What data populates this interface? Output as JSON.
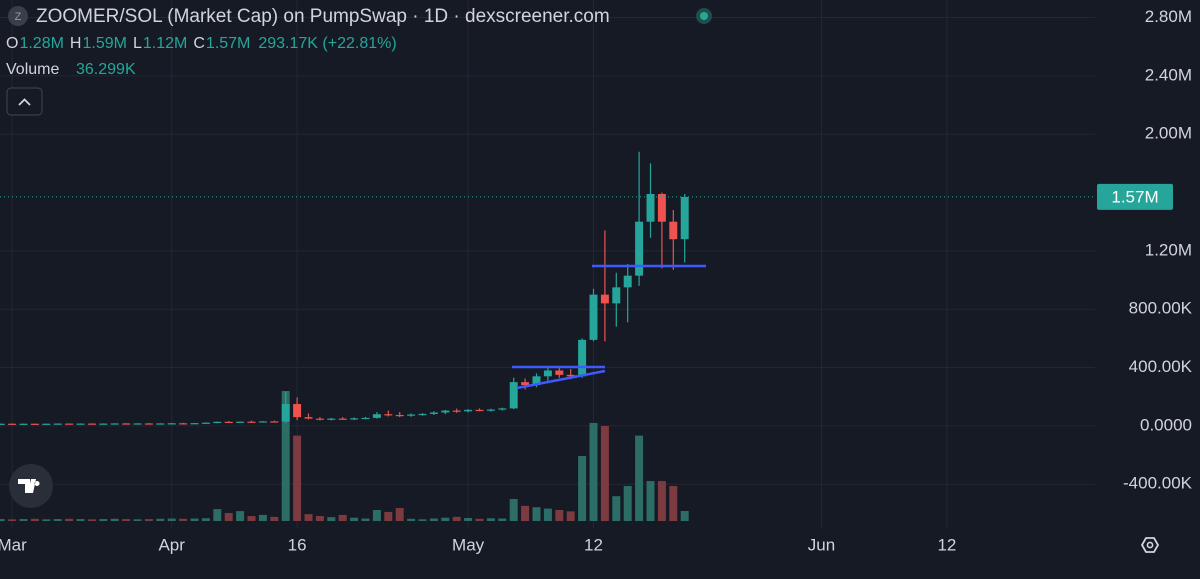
{
  "chart_data": {
    "type": "candlestick",
    "title": "ZOOMER/SOL (Market Cap) on PumpSwap · 1D · dexscreener.com",
    "source_icon": "Z",
    "ohlc_legend": [
      {
        "key": "O",
        "value": "1.28M"
      },
      {
        "key": "H",
        "value": "1.59M"
      },
      {
        "key": "L",
        "value": "1.12M"
      },
      {
        "key": "C",
        "value": "1.57M"
      }
    ],
    "change": "293.17K (+22.81%)",
    "volume_label": "Volume",
    "volume_value": "36.299K",
    "last_price_label": "1.57M",
    "up_color": "#26a69a",
    "down_color": "#ef5350",
    "up_volume_color": "#2c6e66",
    "down_volume_color": "#7d3a40",
    "grid": true,
    "ylim": [
      -700000,
      2920000
    ],
    "yticks": [
      {
        "value": -400000,
        "label": "-400.00K"
      },
      {
        "value": 0,
        "label": "0.0000"
      },
      {
        "value": 400000,
        "label": "400.00K"
      },
      {
        "value": 800000,
        "label": "800.00K"
      },
      {
        "value": 1200000,
        "label": "1.20M"
      },
      {
        "value": 2000000,
        "label": "2.00M"
      },
      {
        "value": 2400000,
        "label": "2.40M"
      },
      {
        "value": 2800000,
        "label": "2.80M"
      }
    ],
    "categories": [
      null,
      "Mar",
      null,
      null,
      null,
      null,
      null,
      null,
      null,
      null,
      null,
      null,
      null,
      null,
      null,
      "Apr",
      null,
      null,
      null,
      null,
      null,
      null,
      null,
      null,
      null,
      null,
      "16",
      null,
      null,
      null,
      null,
      null,
      null,
      null,
      null,
      null,
      null,
      null,
      null,
      null,
      null,
      "May",
      null,
      null,
      null,
      null,
      null,
      null,
      null,
      null,
      null,
      null,
      "12",
      null,
      null,
      null,
      null,
      null,
      null,
      null,
      null,
      null,
      null,
      null,
      null,
      null,
      null,
      null,
      null,
      null,
      null,
      null,
      "Jun",
      null,
      null,
      null,
      null,
      null,
      null,
      null,
      null,
      null,
      null,
      "12",
      null,
      null,
      null,
      null,
      null,
      null,
      null,
      null,
      null,
      null,
      null,
      null
    ],
    "open": [
      14000,
      15000,
      14000,
      15000,
      14000,
      15000,
      16000,
      15000,
      16000,
      15000,
      16000,
      17000,
      16000,
      17000,
      16000,
      17000,
      18000,
      17000,
      19000,
      22000,
      28000,
      25000,
      29000,
      27000,
      31000,
      30000,
      150000,
      60000,
      50000,
      45000,
      50000,
      46000,
      52000,
      55000,
      80000,
      75000,
      70000,
      78000,
      82000,
      92000,
      105000,
      100000,
      110000,
      105000,
      112000,
      120000,
      300000,
      280000,
      340000,
      380000,
      350000,
      340000,
      590000,
      900000,
      840000,
      950000,
      1030000,
      1400000,
      1590000,
      1400000,
      1280000,
      null,
      null,
      null,
      null,
      null,
      null,
      null,
      null,
      null,
      null,
      null,
      null,
      null,
      null,
      null,
      null,
      null,
      null,
      null,
      null,
      null,
      null,
      null,
      null,
      null,
      null,
      null,
      null,
      null,
      null,
      null,
      null,
      null,
      null,
      null
    ],
    "high": [
      16000,
      17000,
      16000,
      16000,
      16000,
      17000,
      17000,
      17000,
      18000,
      17000,
      18000,
      19000,
      18000,
      19000,
      18000,
      20000,
      21000,
      20000,
      24000,
      30000,
      33000,
      30000,
      36000,
      33000,
      36000,
      235000,
      195000,
      85000,
      60000,
      55000,
      60000,
      58000,
      62000,
      95000,
      105000,
      95000,
      85000,
      88000,
      100000,
      110000,
      118000,
      115000,
      120000,
      118000,
      125000,
      330000,
      325000,
      360000,
      400000,
      410000,
      390000,
      600000,
      940000,
      1340000,
      1050000,
      1110000,
      1880000,
      1800000,
      1600000,
      1480000,
      1590000,
      null,
      null,
      null,
      null,
      null,
      null,
      null,
      null,
      null,
      null,
      null,
      null,
      null,
      null,
      null,
      null,
      null,
      null,
      null,
      null,
      null,
      null,
      null,
      null,
      null,
      null,
      null,
      null,
      null,
      null,
      null,
      null,
      null,
      null,
      null
    ],
    "low": [
      12000,
      13000,
      12000,
      13000,
      12000,
      13000,
      14000,
      13000,
      14000,
      13000,
      14000,
      15000,
      14000,
      15000,
      14000,
      15000,
      16000,
      15000,
      17000,
      18000,
      24000,
      22000,
      26000,
      24000,
      24000,
      20000,
      40000,
      45000,
      38000,
      38000,
      42000,
      40000,
      45000,
      50000,
      65000,
      60000,
      62000,
      70000,
      75000,
      80000,
      90000,
      92000,
      100000,
      98000,
      105000,
      115000,
      250000,
      265000,
      300000,
      330000,
      320000,
      330000,
      580000,
      580000,
      680000,
      710000,
      960000,
      1290000,
      1080000,
      1070000,
      1120000,
      null,
      null,
      null,
      null,
      null,
      null,
      null,
      null,
      null,
      null,
      null,
      null,
      null,
      null,
      null,
      null,
      null,
      null,
      null,
      null,
      null,
      null,
      null,
      null,
      null,
      null,
      null,
      null,
      null,
      null,
      null,
      null,
      null,
      null,
      null
    ],
    "close": [
      15000,
      14000,
      15000,
      14000,
      15000,
      16000,
      15000,
      16000,
      15000,
      16000,
      17000,
      16000,
      17000,
      16000,
      17000,
      18000,
      17000,
      19000,
      22000,
      28000,
      25000,
      29000,
      27000,
      31000,
      28000,
      150000,
      60000,
      50000,
      45000,
      50000,
      46000,
      52000,
      55000,
      80000,
      75000,
      70000,
      78000,
      82000,
      92000,
      105000,
      100000,
      110000,
      105000,
      112000,
      120000,
      300000,
      280000,
      340000,
      380000,
      350000,
      340000,
      590000,
      900000,
      840000,
      950000,
      1030000,
      1400000,
      1590000,
      1400000,
      1280000,
      1570000,
      null,
      null,
      null,
      null,
      null,
      null,
      null,
      null,
      null,
      null,
      null,
      null,
      null,
      null,
      null,
      null,
      null,
      null,
      null,
      null,
      null,
      null,
      null,
      null,
      null,
      null,
      null,
      null,
      null,
      null,
      null,
      null,
      null,
      null,
      null
    ],
    "volume": [
      7000,
      6000,
      7000,
      8000,
      6000,
      7000,
      8000,
      7000,
      6000,
      7000,
      8000,
      7000,
      6000,
      7000,
      8000,
      9000,
      8000,
      9000,
      10000,
      43000,
      29000,
      36000,
      18000,
      22000,
      15000,
      472000,
      310000,
      25000,
      18000,
      14000,
      22000,
      12000,
      9000,
      40000,
      33000,
      47000,
      8000,
      6000,
      9000,
      12000,
      15000,
      11000,
      8000,
      10000,
      9000,
      80000,
      55000,
      50000,
      45000,
      40000,
      35000,
      236000,
      356000,
      345000,
      90000,
      127000,
      310000,
      145000,
      145000,
      127000,
      36299,
      null,
      null,
      null,
      null,
      null,
      null,
      null,
      null,
      null,
      null,
      null,
      null,
      null,
      null,
      null,
      null,
      null,
      null,
      null,
      null,
      null,
      null,
      null,
      null,
      null,
      null,
      null,
      null,
      null,
      null,
      null,
      null,
      null,
      null,
      null
    ]
  }
}
